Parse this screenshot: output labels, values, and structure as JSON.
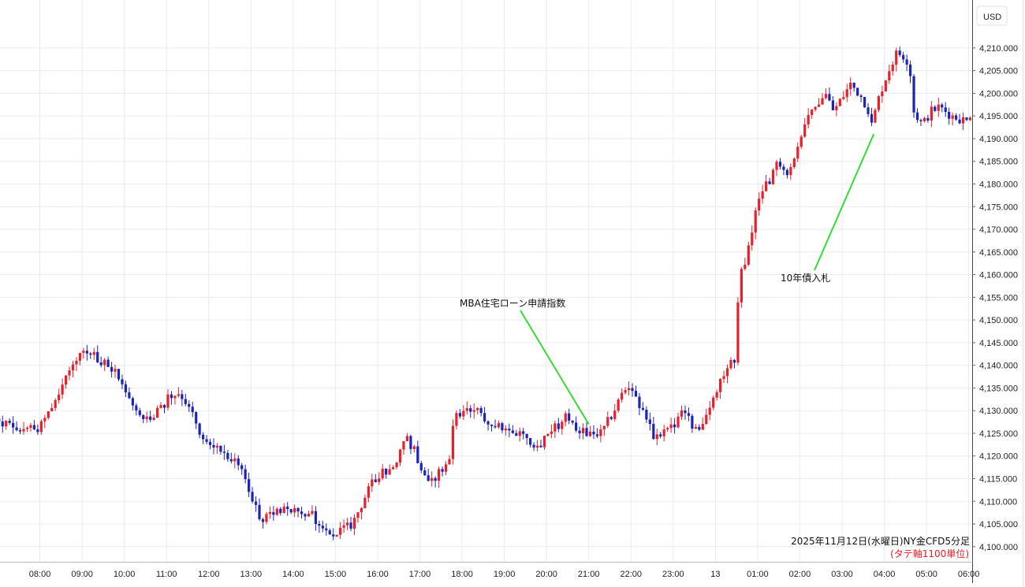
{
  "chart_data": {
    "type": "candlestick",
    "currency": "USD",
    "caption": "2025年11月12日(水曜日)NY金CFD5分足",
    "subcaption": "(タテ軸1100単位)",
    "ylim": [
      4098,
      4214
    ],
    "y_ticks": [
      "4,100.000",
      "4,105.000",
      "4,110.000",
      "4,115.000",
      "4,120.000",
      "4,125.000",
      "4,130.000",
      "4,135.000",
      "4,140.000",
      "4,145.000",
      "4,150.000",
      "4,155.000",
      "4,160.000",
      "4,165.000",
      "4,170.000",
      "4,175.000",
      "4,180.000",
      "4,185.000",
      "4,190.000",
      "4,195.000",
      "4,200.000",
      "4,205.000",
      "4,210.000"
    ],
    "x_ticks": [
      "06:00",
      "08:00",
      "09:00",
      "10:00",
      "11:00",
      "12:00",
      "13:00",
      "14:00",
      "15:00",
      "16:00",
      "17:00",
      "18:00",
      "19:00",
      "20:00",
      "21:00",
      "22:00",
      "23:00",
      "13",
      "01:00",
      "02:00",
      "03:00",
      "04:00",
      "05:00",
      "06:00"
    ],
    "x_tick_hours": [
      -1,
      1,
      2,
      3,
      4,
      5,
      6,
      7,
      8,
      9,
      10,
      11,
      12,
      13,
      14,
      15,
      16,
      17,
      18,
      19,
      20,
      21,
      22,
      23
    ],
    "hour_start": 7,
    "bars_per_hour": 12,
    "price_path": [
      [
        -0.3,
        4128
      ],
      [
        0.2,
        4127
      ],
      [
        0.6,
        4126
      ],
      [
        0.9,
        4125
      ],
      [
        1.2,
        4130
      ],
      [
        1.5,
        4135
      ],
      [
        1.8,
        4141
      ],
      [
        2.0,
        4143
      ],
      [
        2.3,
        4142
      ],
      [
        2.6,
        4140
      ],
      [
        2.9,
        4137
      ],
      [
        3.1,
        4132
      ],
      [
        3.3,
        4130
      ],
      [
        3.6,
        4127
      ],
      [
        3.8,
        4130
      ],
      [
        4.0,
        4133
      ],
      [
        4.3,
        4134
      ],
      [
        4.6,
        4130
      ],
      [
        4.9,
        4123
      ],
      [
        5.2,
        4122
      ],
      [
        5.5,
        4120
      ],
      [
        5.8,
        4116
      ],
      [
        6.0,
        4112
      ],
      [
        6.2,
        4106
      ],
      [
        6.5,
        4107
      ],
      [
        6.8,
        4109
      ],
      [
        7.0,
        4108
      ],
      [
        7.3,
        4107
      ],
      [
        7.5,
        4106
      ],
      [
        7.7,
        4104
      ],
      [
        7.9,
        4103
      ],
      [
        8.1,
        4103
      ],
      [
        8.4,
        4105
      ],
      [
        8.7,
        4111
      ],
      [
        9.0,
        4116
      ],
      [
        9.3,
        4117
      ],
      [
        9.5,
        4120
      ],
      [
        9.7,
        4124
      ],
      [
        9.9,
        4120
      ],
      [
        10.1,
        4116
      ],
      [
        10.3,
        4115
      ],
      [
        10.5,
        4117
      ],
      [
        10.7,
        4119
      ],
      [
        10.8,
        4128
      ],
      [
        11.0,
        4130
      ],
      [
        11.3,
        4130
      ],
      [
        11.6,
        4128
      ],
      [
        11.9,
        4126
      ],
      [
        12.2,
        4125
      ],
      [
        12.5,
        4124
      ],
      [
        12.8,
        4122
      ],
      [
        13.0,
        4125
      ],
      [
        13.3,
        4127
      ],
      [
        13.5,
        4129
      ],
      [
        13.7,
        4126
      ],
      [
        14.0,
        4125
      ],
      [
        14.3,
        4125
      ],
      [
        14.6,
        4130
      ],
      [
        14.8,
        4134
      ],
      [
        15.0,
        4136
      ],
      [
        15.2,
        4131
      ],
      [
        15.5,
        4125
      ],
      [
        15.7,
        4124
      ],
      [
        15.9,
        4126
      ],
      [
        16.1,
        4128
      ],
      [
        16.3,
        4130
      ],
      [
        16.5,
        4126
      ],
      [
        16.7,
        4127
      ],
      [
        16.9,
        4131
      ],
      [
        17.1,
        4136
      ],
      [
        17.3,
        4139
      ],
      [
        17.5,
        4143
      ],
      [
        17.55,
        4160
      ],
      [
        17.7,
        4162
      ],
      [
        17.9,
        4172
      ],
      [
        18.1,
        4178
      ],
      [
        18.3,
        4182
      ],
      [
        18.5,
        4185
      ],
      [
        18.7,
        4183
      ],
      [
        18.9,
        4186
      ],
      [
        19.0,
        4190
      ],
      [
        19.2,
        4195
      ],
      [
        19.4,
        4198
      ],
      [
        19.6,
        4200
      ],
      [
        19.8,
        4196
      ],
      [
        20.0,
        4199
      ],
      [
        20.2,
        4202
      ],
      [
        20.4,
        4200
      ],
      [
        20.6,
        4197
      ],
      [
        20.7,
        4193
      ],
      [
        20.9,
        4200
      ],
      [
        21.1,
        4205
      ],
      [
        21.3,
        4209
      ],
      [
        21.5,
        4208
      ],
      [
        21.6,
        4206
      ],
      [
        21.7,
        4196
      ],
      [
        21.9,
        4193
      ],
      [
        22.1,
        4196
      ],
      [
        22.3,
        4197
      ],
      [
        22.6,
        4195
      ],
      [
        22.9,
        4194
      ],
      [
        23.1,
        4196
      ],
      [
        23.4,
        4195
      ],
      [
        23.6,
        4194
      ],
      [
        23.8,
        4195
      ],
      [
        24.0,
        4196
      ]
    ],
    "annotations": [
      {
        "text": "MBA住宅ローン申請指数",
        "hour": 14.0,
        "price": 4127.0
      },
      {
        "text": "10年債入札",
        "hour": 20.75,
        "price": 4191.0
      }
    ],
    "colors": {
      "up": "#e8202a",
      "down": "#1c23b8",
      "arrow": "#33dd33",
      "grid": "#e6ecf3",
      "subcaption": "#e8202a"
    }
  }
}
